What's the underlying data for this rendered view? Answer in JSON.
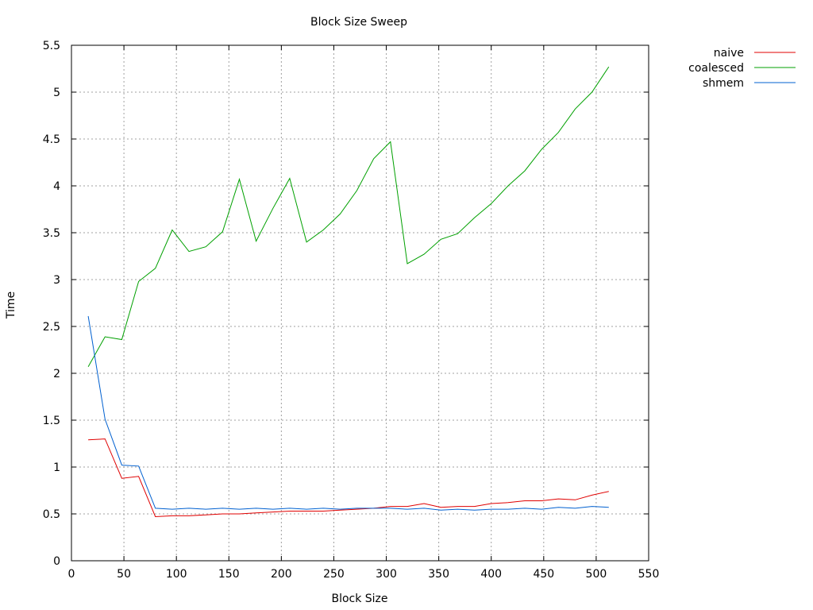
{
  "chart_data": {
    "type": "line",
    "title": "Block Size Sweep",
    "xlabel": "Block Size",
    "ylabel": "Time",
    "xlim": [
      0,
      550
    ],
    "ylim": [
      0,
      5.5
    ],
    "x_ticks": [
      0,
      50,
      100,
      150,
      200,
      250,
      300,
      350,
      400,
      450,
      500,
      550
    ],
    "y_ticks": [
      0,
      0.5,
      1,
      1.5,
      2,
      2.5,
      3,
      3.5,
      4,
      4.5,
      5,
      5.5
    ],
    "x_tick_labels": [
      "0",
      "50",
      "100",
      "150",
      "200",
      "250",
      "300",
      "350",
      "400",
      "450",
      "500",
      "550"
    ],
    "y_tick_labels": [
      "0",
      "0.5",
      "1",
      "1.5",
      "2",
      "2.5",
      "3",
      "3.5",
      "4",
      "4.5",
      "5",
      "5.5"
    ],
    "grid": true,
    "legend_position": "top-right outside",
    "x": [
      16,
      32,
      48,
      64,
      80,
      96,
      112,
      128,
      144,
      160,
      176,
      192,
      208,
      224,
      240,
      256,
      272,
      288,
      304,
      320,
      336,
      352,
      368,
      384,
      400,
      416,
      432,
      448,
      464,
      480,
      496,
      512
    ],
    "series": [
      {
        "name": "naive",
        "color": "#e00000",
        "values": [
          1.29,
          1.3,
          0.88,
          0.9,
          0.47,
          0.48,
          0.48,
          0.49,
          0.5,
          0.5,
          0.51,
          0.52,
          0.53,
          0.53,
          0.53,
          0.54,
          0.55,
          0.56,
          0.58,
          0.58,
          0.61,
          0.57,
          0.58,
          0.58,
          0.61,
          0.62,
          0.64,
          0.64,
          0.66,
          0.65,
          0.7,
          0.74
        ]
      },
      {
        "name": "coalesced",
        "color": "#00a000",
        "values": [
          2.07,
          2.39,
          2.36,
          2.98,
          3.12,
          3.53,
          3.3,
          3.35,
          3.51,
          4.07,
          3.41,
          3.76,
          4.08,
          3.4,
          3.53,
          3.7,
          3.95,
          4.29,
          4.47,
          3.17,
          3.27,
          3.43,
          3.49,
          3.66,
          3.81,
          4.0,
          4.16,
          4.39,
          4.57,
          4.82,
          5.0,
          5.27
        ]
      },
      {
        "name": "shmem",
        "color": "#0060d0",
        "values": [
          2.61,
          1.51,
          1.02,
          1.01,
          0.56,
          0.55,
          0.56,
          0.55,
          0.56,
          0.55,
          0.56,
          0.55,
          0.56,
          0.55,
          0.56,
          0.55,
          0.56,
          0.56,
          0.56,
          0.55,
          0.56,
          0.54,
          0.55,
          0.54,
          0.55,
          0.55,
          0.56,
          0.55,
          0.57,
          0.56,
          0.58,
          0.57
        ]
      }
    ]
  }
}
